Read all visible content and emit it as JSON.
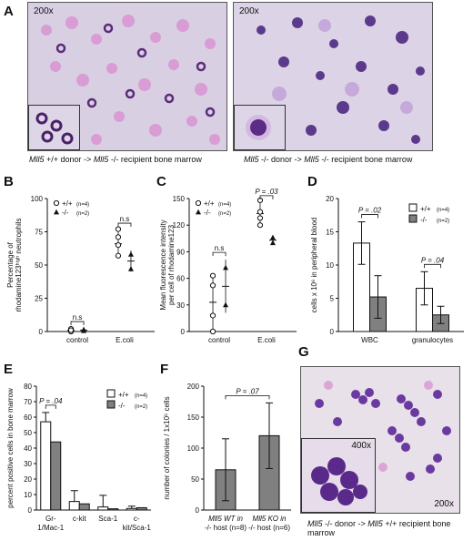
{
  "panels": {
    "A": {
      "label": "A",
      "left_image": {
        "magnification": "200x",
        "caption_parts": [
          "Mll5",
          " +/+ donor -> ",
          "Mll5",
          " -/- recipient bone marrow"
        ]
      },
      "right_image": {
        "magnification": "200x",
        "caption_parts": [
          "Mll5",
          " -/- donor -> ",
          "Mll5",
          " -/- recipient bone marrow"
        ]
      }
    },
    "G": {
      "label": "G",
      "inset_magnification": "400x",
      "magnification": "200x",
      "caption_parts": [
        "Mll5",
        " -/- donor -> ",
        "Mll5",
        " +/+ recipient bone marrow"
      ]
    }
  },
  "chart_data": [
    {
      "panel": "B",
      "type": "scatter",
      "ylabel_lines": [
        "Percentage of",
        "rhodamine123ʰⁱᵍʰ neutrophils"
      ],
      "categories": [
        "control",
        "E.coli"
      ],
      "ylim": [
        0,
        100
      ],
      "yticks": [
        0,
        25,
        50,
        75,
        100
      ],
      "legend": [
        {
          "symbol": "circle-open",
          "label": "+/+",
          "n": "(n=4)"
        },
        {
          "symbol": "triangle-filled",
          "label": "-/-",
          "n": "(n=2)"
        }
      ],
      "series": [
        {
          "name": "+/+",
          "symbol": "circle-open",
          "points": {
            "control": [
              0,
              1,
              2,
              1
            ],
            "E.coli": [
              57,
              65,
              71,
              77
            ]
          },
          "mean": {
            "control": 1,
            "E.coli": 66
          },
          "sd": {
            "control": 1,
            "E.coli": 10
          }
        },
        {
          "name": "-/-",
          "symbol": "triangle-filled",
          "points": {
            "control": [
              0.5,
              1.5
            ],
            "E.coli": [
              47,
              58
            ]
          },
          "mean": {
            "control": 1,
            "E.coli": 53
          },
          "sd": {
            "control": 1,
            "E.coli": 8
          }
        }
      ],
      "annotations": [
        {
          "category": "control",
          "text": "n.s"
        },
        {
          "category": "E.coli",
          "text": "n.s"
        }
      ]
    },
    {
      "panel": "C",
      "type": "scatter",
      "ylabel_lines": [
        "Mean fluorescence intensity",
        "per cell of rhodamine123"
      ],
      "categories": [
        "control",
        "E.coli"
      ],
      "ylim": [
        0,
        150
      ],
      "yticks": [
        0,
        30,
        60,
        90,
        120,
        150
      ],
      "legend": [
        {
          "symbol": "circle-open",
          "label": "+/+",
          "n": "(n=4)"
        },
        {
          "symbol": "triangle-filled",
          "label": "-/-",
          "n": "(n=2)"
        }
      ],
      "series": [
        {
          "name": "+/+",
          "symbol": "circle-open",
          "points": {
            "control": [
              0,
              18,
              52,
              63
            ],
            "E.coli": [
              120,
              128,
              135,
              148
            ]
          },
          "mean": {
            "control": 33,
            "E.coli": 133
          },
          "sd": {
            "control": 30,
            "E.coli": 12
          }
        },
        {
          "name": "-/-",
          "symbol": "triangle-filled",
          "points": {
            "control": [
              30,
              72
            ],
            "E.coli": [
              100,
              106
            ]
          },
          "mean": {
            "control": 51,
            "E.coli": 103
          },
          "sd": {
            "control": 30,
            "E.coli": 4
          }
        }
      ],
      "annotations": [
        {
          "category": "control",
          "text": "n.s"
        },
        {
          "category": "E.coli",
          "text": "P = .03"
        }
      ]
    },
    {
      "panel": "D",
      "type": "bar",
      "ylabel_lines": [
        "cells x 10⁶ in peripheral blood"
      ],
      "categories": [
        "WBC",
        "granulocytes"
      ],
      "ylim": [
        0,
        20
      ],
      "yticks": [
        0,
        5,
        10,
        15,
        20
      ],
      "series": [
        {
          "name": "+/+",
          "n": "(n=4)",
          "color": "#ffffff",
          "values": [
            13.3,
            6.5
          ],
          "errors": [
            3.2,
            2.5
          ]
        },
        {
          "name": "-/-",
          "n": "(n=2)",
          "color": "#808080",
          "values": [
            5.2,
            2.5
          ],
          "errors": [
            3.2,
            1.3
          ]
        }
      ],
      "annotations": [
        {
          "category": "WBC",
          "text": "P = .02"
        },
        {
          "category": "granulocytes",
          "text": "P = .04"
        }
      ]
    },
    {
      "panel": "E",
      "type": "bar",
      "ylabel_lines": [
        "percent positive cells in bone marrow"
      ],
      "categories": [
        "Gr-\n1/Mac-1",
        "c-kit",
        "Sca-1",
        "c-\nkit/Sca-1"
      ],
      "ylim": [
        0,
        80
      ],
      "yticks": [
        0,
        10,
        20,
        30,
        40,
        50,
        60,
        70,
        80
      ],
      "series": [
        {
          "name": "+/+",
          "n": "(n=4)",
          "color": "#ffffff",
          "values": [
            57,
            5.5,
            2,
            1
          ],
          "errors": [
            6,
            7,
            7.5,
            1.5
          ]
        },
        {
          "name": "-/-",
          "n": "(n=2)",
          "color": "#808080",
          "values": [
            44,
            4,
            0.8,
            1.5
          ],
          "errors": [
            0,
            0,
            0,
            0
          ]
        }
      ],
      "annotations": [
        {
          "category": "Gr-\n1/Mac-1",
          "text": "P = .04"
        }
      ]
    },
    {
      "panel": "F",
      "type": "bar",
      "ylabel_lines": [
        "number of colonies / 1x10⁵ cells"
      ],
      "categories": [
        "Mll5 WT in\n-/- host (n=8)",
        "Mll5 KO in\n-/- host (n=6)"
      ],
      "ylim": [
        0,
        200
      ],
      "yticks": [
        0,
        50,
        100,
        150,
        200
      ],
      "series": [
        {
          "name": "",
          "color": "#808080",
          "values": [
            65,
            120
          ],
          "errors": [
            50,
            53
          ]
        }
      ],
      "annotations": [
        {
          "category": "all",
          "text": "P = .07"
        }
      ]
    }
  ]
}
